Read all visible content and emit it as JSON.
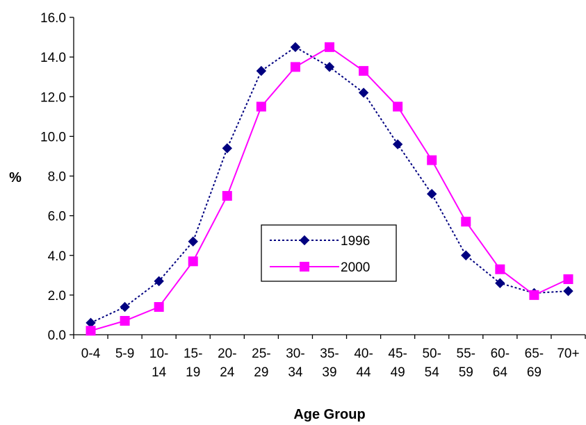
{
  "chart_data": {
    "type": "line",
    "title": "",
    "xlabel": "Age Group",
    "ylabel": "%",
    "ylim": [
      0,
      16
    ],
    "yticks": [
      "0.0",
      "2.0",
      "4.0",
      "6.0",
      "8.0",
      "10.0",
      "12.0",
      "14.0",
      "16.0"
    ],
    "grid": false,
    "legend": "center",
    "categories": [
      [
        "0-4"
      ],
      [
        "5-9"
      ],
      [
        "10-",
        "14"
      ],
      [
        "15-",
        "19"
      ],
      [
        "20-",
        "24"
      ],
      [
        "25-",
        "29"
      ],
      [
        "30-",
        "34"
      ],
      [
        "35-",
        "39"
      ],
      [
        "40-",
        "44"
      ],
      [
        "45-",
        "49"
      ],
      [
        "50-",
        "54"
      ],
      [
        "55-",
        "59"
      ],
      [
        "60-",
        "64"
      ],
      [
        "65-",
        "69"
      ],
      [
        "70+"
      ]
    ],
    "series": [
      {
        "name": "1996",
        "color": "#000080",
        "line": "dotted",
        "marker": "diamond",
        "values": [
          0.6,
          1.4,
          2.7,
          4.7,
          9.4,
          13.3,
          14.5,
          13.5,
          12.2,
          9.6,
          7.1,
          4.0,
          2.6,
          2.1,
          2.2
        ]
      },
      {
        "name": "2000",
        "color": "#FF00FF",
        "line": "solid",
        "marker": "square",
        "values": [
          0.2,
          0.7,
          1.4,
          3.7,
          7.0,
          11.5,
          13.5,
          14.5,
          13.3,
          11.5,
          8.8,
          5.7,
          3.3,
          2.0,
          2.8
        ]
      }
    ]
  }
}
